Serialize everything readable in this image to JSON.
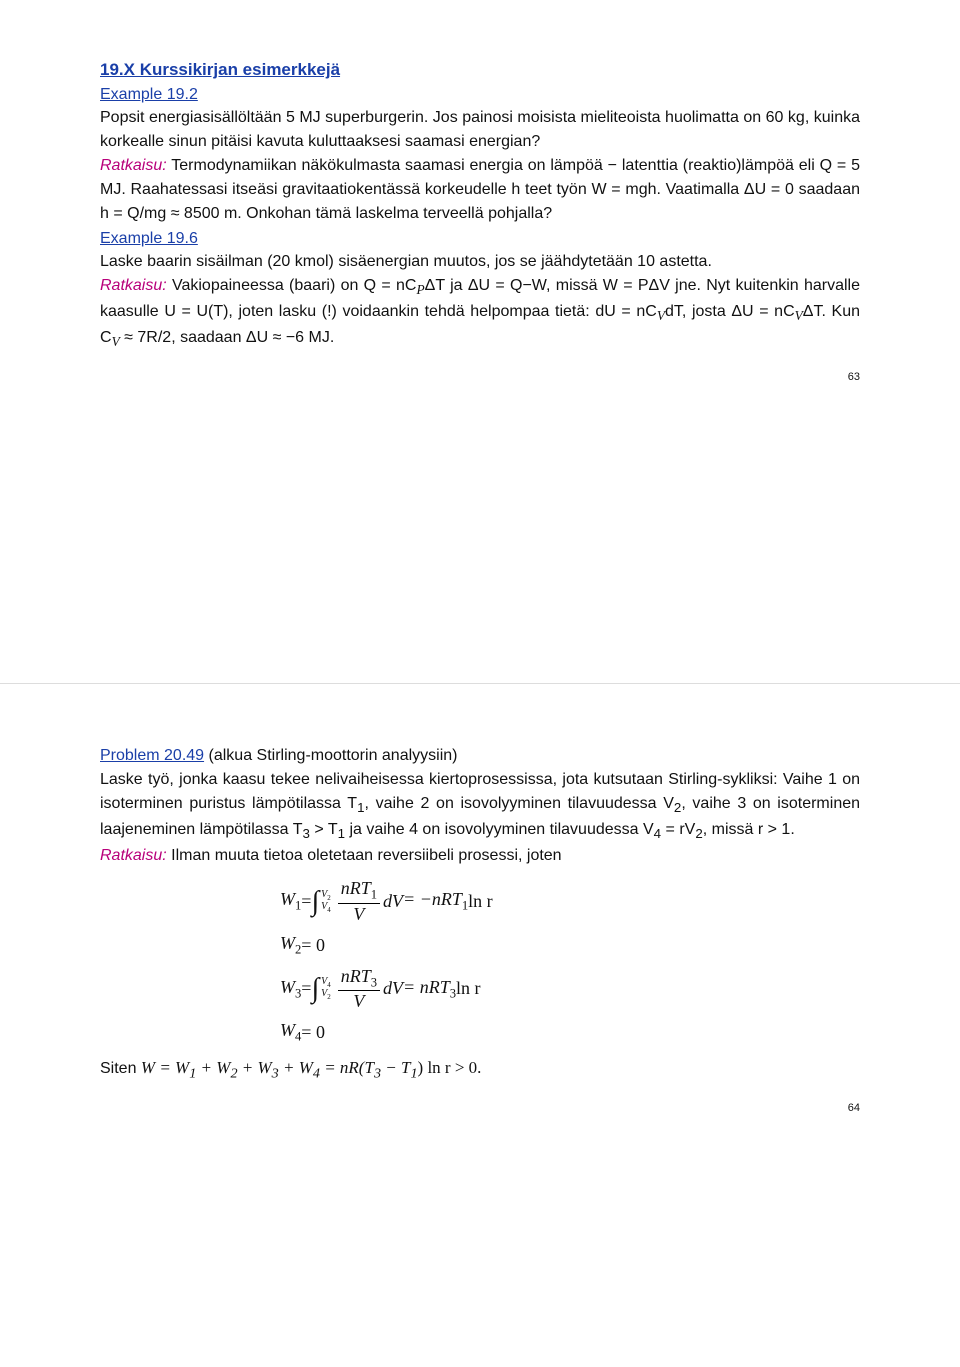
{
  "page63": {
    "section_title": "19.X Kurssikirjan esimerkkejä",
    "ex1_label": "Example 19.2",
    "ex1_problem": "Popsit energiasisällöltään 5 MJ superburgerin. Jos painosi moisista mieliteoista huolimatta on 60 kg, kuinka korkealle sinun pitäisi kavuta kuluttaaksesi saamasi energian?",
    "ex1_ratkaisu_label": "Ratkaisu:",
    "ex1_solution": " Termodynamiikan näkökulmasta saamasi energia on lämpöä − latenttia (reaktio)lämpöä eli Q = 5 MJ. Raahatessasi itseäsi gravitaatiokentässä korkeudelle h teet työn W = mgh. Vaatimalla ΔU = 0 saadaan h = Q/mg ≈ 8500 m. Onkohan tämä laskelma terveellä pohjalla?",
    "ex2_label": "Example 19.6",
    "ex2_problem": "Laske baarin sisäilman (20 kmol) sisäenergian muutos, jos se jäähdytetään 10 astetta.",
    "ex2_ratkaisu_label": "Ratkaisu:",
    "ex2_solution_a": " Vakiopaineessa (baari) on Q = nC",
    "ex2_solution_b": "ΔT ja ΔU = Q−W, missä W = PΔV jne. Nyt kuitenkin harvalle kaasulle U = U(T), joten lasku (!) voidaankin tehdä helpompaa tietä: dU = nC",
    "ex2_solution_c": "dT, josta ΔU = nC",
    "ex2_solution_d": "ΔT. Kun C",
    "ex2_solution_e": " ≈ 7R/2, saadaan ΔU ≈ −6 MJ.",
    "page_number": "63"
  },
  "page64": {
    "prob_label": "Problem 20.49",
    "prob_paren": " (alkua Stirling-moottorin analyysiin)",
    "prob_text_a": "Laske työ, jonka kaasu tekee nelivaiheisessa kiertoprosessissa, jota kutsutaan Stirling-sykliksi: Vaihe 1 on isoterminen puristus lämpötilassa T",
    "prob_text_b": ", vaihe 2 on isovolyyminen tilavuudessa V",
    "prob_text_c": ", vaihe 3 on isoterminen laajeneminen lämpötilassa T",
    "prob_text_d": " > T",
    "prob_text_e": " ja vaihe 4 on isovolyyminen tilavuudessa V",
    "prob_text_f": " = rV",
    "prob_text_g": ", missä r > 1.",
    "ratkaisu_label": "Ratkaisu:",
    "sol_intro": " Ilman muuta tietoa oletetaan reversiibeli prosessi, joten",
    "eq": {
      "w1_lhs": "W",
      "w1_sub": "1",
      "w1_eq": " = ",
      "int1_upper_v": "V",
      "int1_upper_s": "2",
      "int1_lower_v": "V",
      "int1_lower_s": "4",
      "frac1_num_a": "nRT",
      "frac1_num_sub": "1",
      "frac1_den": "V",
      "dv": "dV",
      "eq_neg": " = −nRT",
      "eq_neg_sub": "1",
      "lnr": " ln r",
      "w2_lhs": "W",
      "w2_sub": "2",
      "w2_rhs": " = 0",
      "w3_lhs": "W",
      "w3_sub": "3",
      "w3_eq": " = ",
      "int3_upper_v": "V",
      "int3_upper_s": "4",
      "int3_lower_v": "V",
      "int3_lower_s": "2",
      "frac3_num_a": "nRT",
      "frac3_num_sub": "3",
      "frac3_den": "V",
      "eq3_rhs": " = nRT",
      "eq3_rhs_sub": "3",
      "eq3_ln": " ln r",
      "w4_lhs": "W",
      "w4_sub": "4",
      "w4_rhs": " = 0"
    },
    "final_a": "Siten ",
    "final_b": "W = W",
    "final_c": " + W",
    "final_d": " = nR(T",
    "final_e": " − T",
    "final_f": ") ln r > 0.",
    "page_number": "64"
  },
  "colors": {
    "section_blue": "#1a3fa8",
    "solution_magenta": "#b8007a",
    "text": "#111111",
    "background": "#ffffff"
  }
}
